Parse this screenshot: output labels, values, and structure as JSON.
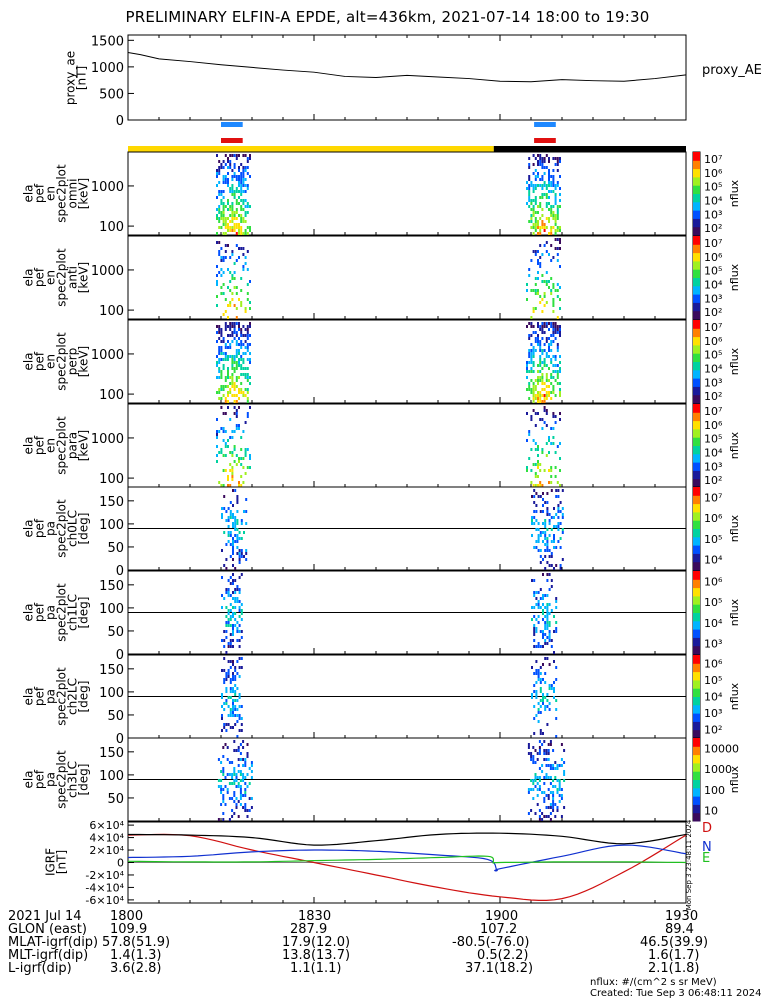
{
  "title": "PRELIMINARY ELFIN-A EPDE, alt=436km, 2021-07-14 18:00 to 19:30",
  "colors": {
    "bar_blue": "#1e88ff",
    "bar_red": "#e01010",
    "sun_yellow": "#ffd800",
    "shade_black": "#000000",
    "ae_line": "#000000",
    "igrf_d": "#d01010",
    "igrf_n": "#1030d0",
    "igrf_e": "#20c020",
    "igrf_h": "#000000"
  },
  "chart_data": [
    {
      "type": "line",
      "panel": "proxy_ae",
      "ylabel": [
        "proxy_ae",
        "[nT]"
      ],
      "legend": [
        "proxy_AE"
      ],
      "ylim": [
        0,
        1600
      ],
      "yticks": [
        "0",
        "500",
        "1000",
        "1500"
      ],
      "series": [
        {
          "name": "proxy_AE",
          "x": [
            0,
            2,
            5,
            10,
            15,
            20,
            25,
            30,
            35,
            40,
            45,
            50,
            55,
            60,
            65,
            70,
            75,
            80,
            85,
            90
          ],
          "values": [
            1270,
            1230,
            1150,
            1100,
            1040,
            990,
            940,
            900,
            820,
            800,
            840,
            810,
            780,
            730,
            720,
            760,
            740,
            730,
            780,
            850
          ]
        }
      ]
    },
    {
      "type": "bar",
      "panel": "science_zones",
      "description": "science-zone / sunlight indicators",
      "blue_bars_minutes": [
        [
          15,
          18.5
        ],
        [
          65.5,
          69
        ]
      ],
      "red_bars_minutes": [
        [
          15,
          18.5
        ],
        [
          65.5,
          69
        ]
      ],
      "yellow_span_minutes": [
        0,
        59
      ],
      "black_span_minutes": [
        59,
        90
      ]
    },
    {
      "type": "heatmap",
      "panel": "en_omni",
      "ylabel": [
        "ela",
        "pef",
        "en",
        "spec2plot",
        "omni",
        "[keV]"
      ],
      "yticks": [
        "100",
        "1000"
      ],
      "colorbar": {
        "label": "nflux",
        "ticks": [
          "10²",
          "10³",
          "10⁴",
          "10⁵",
          "10⁶",
          "10⁷"
        ]
      },
      "bursts_minutes": [
        [
          14.2,
          19.8
        ],
        [
          64.2,
          69.8
        ]
      ]
    },
    {
      "type": "heatmap",
      "panel": "en_anti",
      "ylabel": [
        "ela",
        "pef",
        "en",
        "spec2plot",
        "anti",
        "[keV]"
      ],
      "yticks": [
        "100",
        "1000"
      ],
      "colorbar": {
        "label": "nflux",
        "ticks": [
          "10²",
          "10³",
          "10⁴",
          "10⁵",
          "10⁶",
          "10⁷"
        ]
      },
      "bursts_minutes": [
        [
          14.2,
          19.8
        ],
        [
          64.2,
          69.8
        ]
      ]
    },
    {
      "type": "heatmap",
      "panel": "en_perp",
      "ylabel": [
        "ela",
        "pef",
        "en",
        "spec2plot",
        "perp",
        "[keV]"
      ],
      "yticks": [
        "100",
        "1000"
      ],
      "colorbar": {
        "label": "nflux",
        "ticks": [
          "10²",
          "10³",
          "10⁴",
          "10⁵",
          "10⁶",
          "10⁷"
        ]
      },
      "bursts_minutes": [
        [
          14.2,
          19.8
        ],
        [
          64.2,
          69.8
        ]
      ]
    },
    {
      "type": "heatmap",
      "panel": "en_para",
      "ylabel": [
        "ela",
        "pef",
        "en",
        "spec2plot",
        "para",
        "[keV]"
      ],
      "yticks": [
        "100",
        "1000"
      ],
      "colorbar": {
        "label": "nflux",
        "ticks": [
          "10²",
          "10³",
          "10⁴",
          "10⁵",
          "10⁶",
          "10⁷"
        ]
      },
      "bursts_minutes": [
        [
          14.2,
          19.8
        ],
        [
          64.2,
          69.8
        ]
      ]
    },
    {
      "type": "heatmap",
      "panel": "pa_ch0",
      "ylabel": [
        "ela",
        "pef",
        "pa",
        "spec2plot",
        "ch0LC",
        "[deg]"
      ],
      "yticks": [
        "0",
        "50",
        "100",
        "150"
      ],
      "colorbar": {
        "label": "nflux",
        "ticks": [
          "10⁴",
          "10⁵",
          "10⁶",
          "10⁷"
        ]
      },
      "bursts_minutes": [
        [
          15,
          19
        ],
        [
          65,
          70
        ]
      ]
    },
    {
      "type": "heatmap",
      "panel": "pa_ch1",
      "ylabel": [
        "ela",
        "pef",
        "pa",
        "spec2plot",
        "ch1LC",
        "[deg]"
      ],
      "yticks": [
        "0",
        "50",
        "100",
        "150"
      ],
      "colorbar": {
        "label": "nflux",
        "ticks": [
          "10³",
          "10⁴",
          "10⁵",
          "10⁶"
        ]
      },
      "bursts_minutes": [
        [
          15,
          18.5
        ],
        [
          65,
          69
        ]
      ]
    },
    {
      "type": "heatmap",
      "panel": "pa_ch2",
      "ylabel": [
        "ela",
        "pef",
        "pa",
        "spec2plot",
        "ch2LC",
        "[deg]"
      ],
      "yticks": [
        "0",
        "50",
        "100",
        "150"
      ],
      "colorbar": {
        "label": "nflux",
        "ticks": [
          "10²",
          "10³",
          "10⁴",
          "10⁵",
          "10⁶"
        ]
      },
      "bursts_minutes": [
        [
          15,
          18.5
        ],
        [
          65,
          69
        ]
      ]
    },
    {
      "type": "heatmap",
      "panel": "pa_ch3",
      "ylabel": [
        "ela",
        "pef",
        "pa",
        "spec2plot",
        "ch3LC",
        "[deg]"
      ],
      "yticks": [
        "50",
        "100",
        "150"
      ],
      "colorbar": {
        "label": "nflux",
        "ticks": [
          "10",
          "100",
          "1000",
          "10000"
        ]
      },
      "bursts_minutes": [
        [
          14.5,
          20
        ],
        [
          64.5,
          70.5
        ]
      ]
    },
    {
      "type": "line",
      "panel": "igrf",
      "ylabel": [
        "IGRF",
        "[nT]"
      ],
      "ylim": [
        -65000,
        65000
      ],
      "yticks": [
        "-6×10⁴",
        "-4×10⁴",
        "-2×10⁴",
        "0",
        "2×10⁴",
        "4×10⁴",
        "6×10⁴"
      ],
      "legend": [
        "D",
        "N",
        "E"
      ],
      "series": [
        {
          "name": "D",
          "x": [
            0,
            10,
            20,
            30,
            40,
            50,
            60,
            70,
            80,
            90
          ],
          "values": [
            44000,
            43000,
            20000,
            0,
            -20000,
            -40000,
            -55000,
            -58000,
            -15000,
            44000
          ]
        },
        {
          "name": "N",
          "x": [
            0,
            10,
            20,
            30,
            40,
            50,
            58,
            59.5,
            60,
            70,
            80,
            90
          ],
          "values": [
            8000,
            10000,
            17000,
            20000,
            18000,
            12000,
            5000,
            -12000,
            -10000,
            10000,
            28000,
            14000
          ]
        },
        {
          "name": "E",
          "x": [
            0,
            10,
            20,
            30,
            40,
            50,
            58,
            59,
            60,
            70,
            80,
            90
          ],
          "values": [
            2000,
            1000,
            1000,
            3000,
            5000,
            8000,
            10000,
            0,
            0,
            1000,
            1000,
            0
          ]
        },
        {
          "name": "",
          "x": [
            0,
            10,
            20,
            30,
            40,
            50,
            60,
            70,
            80,
            90
          ],
          "values": [
            45000,
            44000,
            40000,
            28000,
            35000,
            45000,
            47000,
            42000,
            30000,
            45000
          ]
        }
      ]
    }
  ],
  "footer": {
    "row_labels": [
      "2021 Jul 14",
      "GLON (east)",
      "MLAT-igrf(dip)",
      "MLT-igrf(dip)",
      "L-igrf(dip)"
    ],
    "columns": [
      [
        "1800",
        "109.9",
        "57.8(51.9)",
        "1.4(1.3)",
        "3.6(2.8)"
      ],
      [
        "1830",
        "287.9",
        "17.9(12.0)",
        "13.8(13.7)",
        "1.1(1.1)"
      ],
      [
        "1900",
        "107.2",
        "-80.5(-76.0)",
        "0.5(2.2)",
        "37.1(18.2)"
      ],
      [
        "1930",
        "89.4",
        "46.5(39.9)",
        "1.6(1.7)",
        "2.1(1.8)"
      ]
    ],
    "note_units": "nflux: #/(cm^2 s sr MeV)",
    "note_created": "Created: Tue Sep  3 06:48:11 2024",
    "side_stamp": "Mon Sep  3 23:48:11 2024"
  }
}
